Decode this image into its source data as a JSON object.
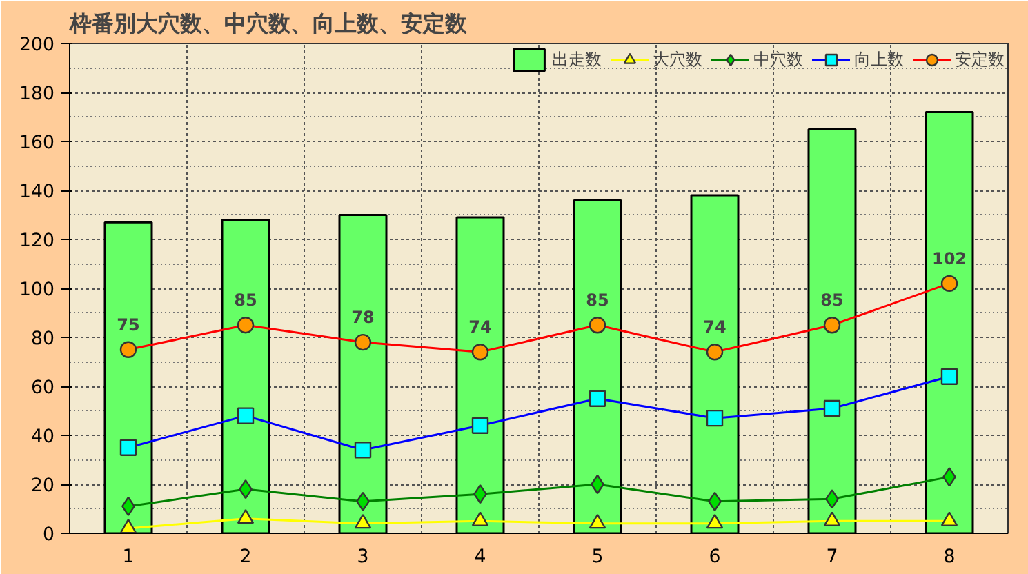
{
  "chart_data": {
    "type": "bar",
    "title": "枠番別大穴数、中穴数、向上数、安定数",
    "categories": [
      "1",
      "2",
      "3",
      "4",
      "5",
      "6",
      "7",
      "8"
    ],
    "ylim": [
      0,
      200
    ],
    "yticks": [
      0,
      20,
      40,
      60,
      80,
      100,
      120,
      140,
      160,
      180,
      200
    ],
    "grid": true,
    "legend": "top right",
    "series": [
      {
        "name": "出走数",
        "color": "#66ff66",
        "values": [
          127,
          128,
          130,
          129,
          136,
          138,
          165,
          172
        ]
      },
      {
        "name": "大穴数",
        "type": "line",
        "marker": "triangle",
        "color": "#ffff00",
        "values": [
          2,
          6,
          4,
          5,
          4,
          4,
          5,
          5
        ]
      },
      {
        "name": "中穴数",
        "type": "line",
        "marker": "diamond",
        "color": "#008000",
        "values": [
          11,
          18,
          13,
          16,
          20,
          13,
          14,
          23
        ]
      },
      {
        "name": "向上数",
        "type": "line",
        "marker": "square",
        "color": "#0000ff",
        "values": [
          35,
          48,
          34,
          44,
          55,
          47,
          51,
          64
        ]
      },
      {
        "name": "安定数",
        "type": "line",
        "marker": "circle",
        "color": "#ff0000",
        "values": [
          75,
          85,
          78,
          74,
          85,
          74,
          85,
          102
        ],
        "value_labels": [
          "75",
          "85",
          "78",
          "74",
          "85",
          "74",
          "85",
          "102"
        ]
      }
    ]
  }
}
